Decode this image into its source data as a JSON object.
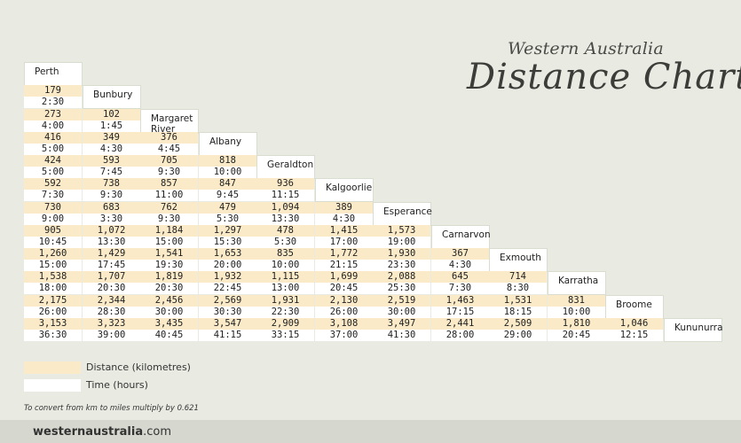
{
  "title": {
    "small": "Western Australia",
    "big": "Distance Chart"
  },
  "towns": [
    "Perth",
    "Bunbury",
    "Margaret River",
    "Albany",
    "Geraldton",
    "Kalgoorlie",
    "Esperance",
    "Carnarvon",
    "Exmouth",
    "Karratha",
    "Broome",
    "Kununurra"
  ],
  "distances": [
    [],
    [
      "179"
    ],
    [
      "273",
      "102"
    ],
    [
      "416",
      "349",
      "376"
    ],
    [
      "424",
      "593",
      "705",
      "818"
    ],
    [
      "592",
      "738",
      "857",
      "847",
      "936"
    ],
    [
      "730",
      "683",
      "762",
      "479",
      "1,094",
      "389"
    ],
    [
      "905",
      "1,072",
      "1,184",
      "1,297",
      "478",
      "1,415",
      "1,573"
    ],
    [
      "1,260",
      "1,429",
      "1,541",
      "1,653",
      "835",
      "1,772",
      "1,930",
      "367"
    ],
    [
      "1,538",
      "1,707",
      "1,819",
      "1,932",
      "1,115",
      "1,699",
      "2,088",
      "645",
      "714"
    ],
    [
      "2,175",
      "2,344",
      "2,456",
      "2,569",
      "1,931",
      "2,130",
      "2,519",
      "1,463",
      "1,531",
      "831"
    ],
    [
      "3,153",
      "3,323",
      "3,435",
      "3,547",
      "2,909",
      "3,108",
      "3,497",
      "2,441",
      "2,509",
      "1,810",
      "1,046"
    ]
  ],
  "times": [
    [],
    [
      "2:30"
    ],
    [
      "4:00",
      "1:45"
    ],
    [
      "5:00",
      "4:30",
      "4:45"
    ],
    [
      "5:00",
      "7:45",
      "9:30",
      "10:00"
    ],
    [
      "7:30",
      "9:30",
      "11:00",
      "9:45",
      "11:15"
    ],
    [
      "9:00",
      "3:30",
      "9:30",
      "5:30",
      "13:30",
      "4:30"
    ],
    [
      "10:45",
      "13:30",
      "15:00",
      "15:30",
      "5:30",
      "17:00",
      "19:00"
    ],
    [
      "15:00",
      "17:45",
      "19:30",
      "20:00",
      "10:00",
      "21:15",
      "23:30",
      "4:30"
    ],
    [
      "18:00",
      "20:30",
      "20:30",
      "22:45",
      "13:00",
      "20:45",
      "25:30",
      "7:30",
      "8:30"
    ],
    [
      "26:00",
      "28:30",
      "30:00",
      "30:30",
      "22:30",
      "26:00",
      "30:00",
      "17:15",
      "18:15",
      "10:00"
    ],
    [
      "36:30",
      "39:00",
      "40:45",
      "41:15",
      "33:15",
      "37:00",
      "41:30",
      "28:00",
      "29:00",
      "20:45",
      "12:15"
    ]
  ],
  "legend": {
    "distance": "Distance (kilometres)",
    "time": "Time (hours)"
  },
  "colors": {
    "distance": "#faeac7",
    "time": "#ffffff",
    "background": "#e9ebe3"
  },
  "note": "To convert from km to miles multiply by 0.621",
  "footer": {
    "bold": "westernaustralia",
    "rest": ".com"
  }
}
